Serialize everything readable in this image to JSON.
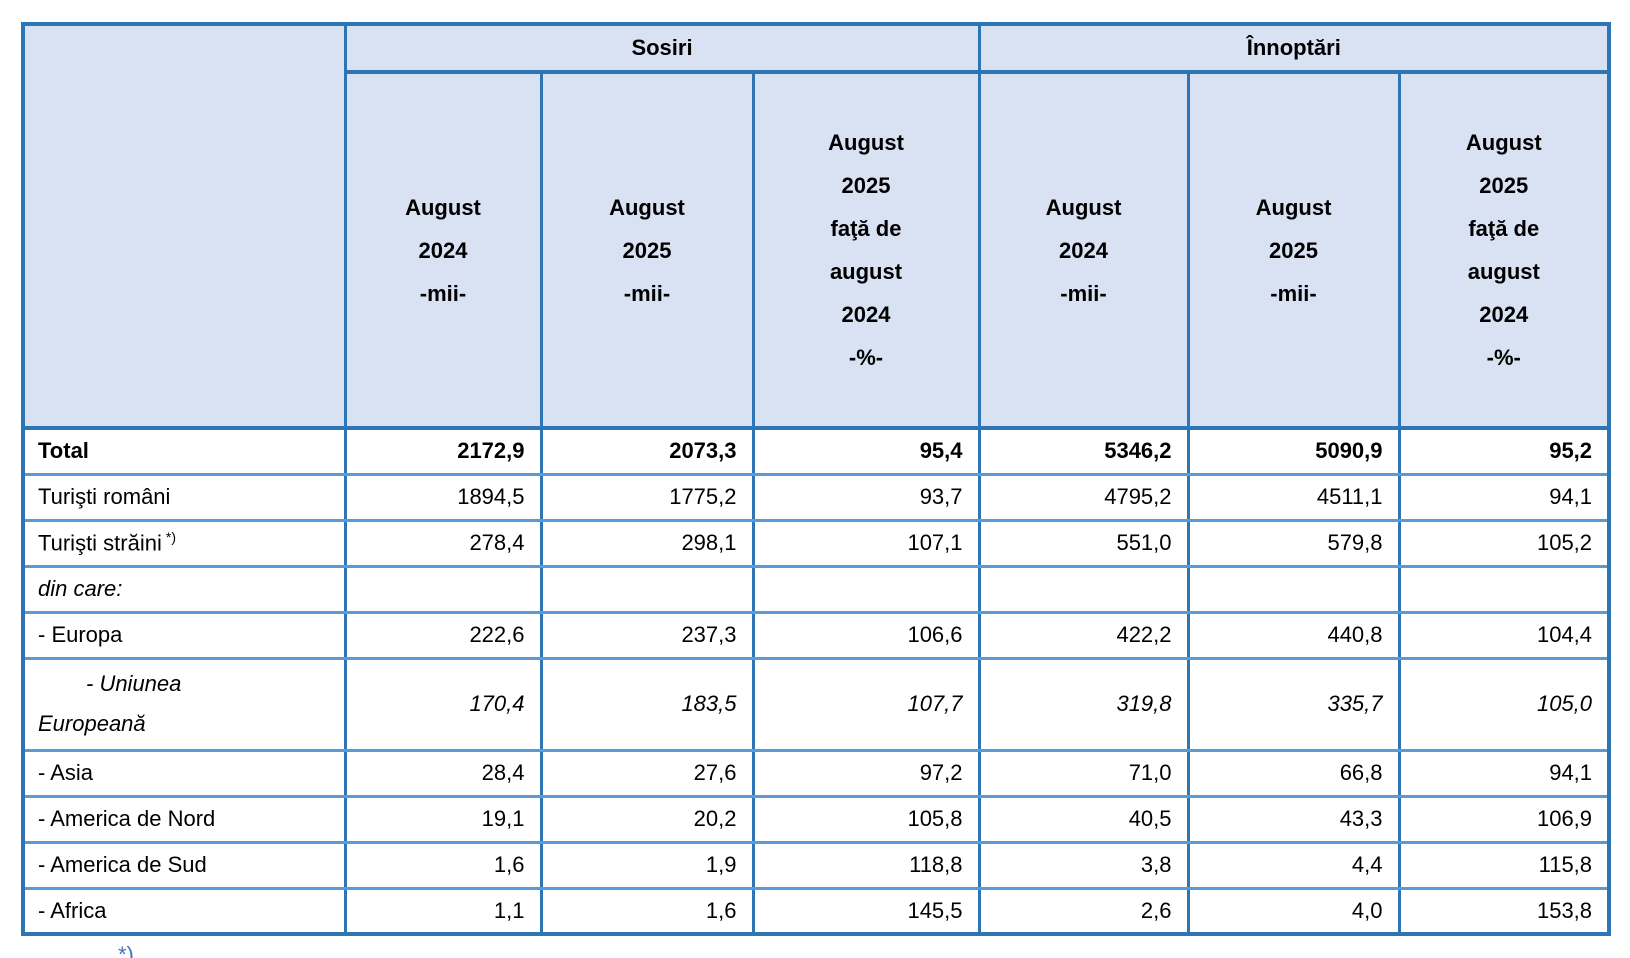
{
  "colors": {
    "border_dark": "#2E75B6",
    "border_light": "#5B9BD5",
    "header_background": "#D9E2F2",
    "text": "#000000",
    "footnote_blue": "#4472C4"
  },
  "table": {
    "group_headers": [
      {
        "label": "Sosiri"
      },
      {
        "label": "Înnoptări"
      }
    ],
    "column_headers": [
      "August\n2024\n-mii-",
      "August\n2025\n-mii-",
      "August\n2025\nfaţă de\naugust\n2024\n-%-",
      "August\n2024\n-mii-",
      "August\n2025\n-mii-",
      "August\n2025\nfaţă de\naugust\n2024\n-%-"
    ],
    "rows": [
      {
        "label": "Total",
        "bold": true,
        "values": [
          "2172,9",
          "2073,3",
          "95,4",
          "5346,2",
          "5090,9",
          "95,2"
        ]
      },
      {
        "label": "Turişti români",
        "values": [
          "1894,5",
          "1775,2",
          "93,7",
          "4795,2",
          "4511,1",
          "94,1"
        ]
      },
      {
        "label": "Turişti străini",
        "superscript": "*)",
        "values": [
          "278,4",
          "298,1",
          "107,1",
          "551,0",
          "579,8",
          "105,2"
        ]
      },
      {
        "label": "din care:",
        "italic_label": true,
        "values": [
          "",
          "",
          "",
          "",
          "",
          ""
        ]
      },
      {
        "label": "- Europa",
        "values": [
          "222,6",
          "237,3",
          "106,6",
          "422,2",
          "440,8",
          "104,4"
        ]
      },
      {
        "label": "- Uniunea Europeană",
        "italic": true,
        "label_lines": [
          "- Uniunea",
          "Europeană"
        ],
        "values": [
          "170,4",
          "183,5",
          "107,7",
          "319,8",
          "335,7",
          "105,0"
        ]
      },
      {
        "label": "- Asia",
        "values": [
          "28,4",
          "27,6",
          "97,2",
          "71,0",
          "66,8",
          "94,1"
        ]
      },
      {
        "label": "- America de Nord",
        "values": [
          "19,1",
          "20,2",
          "105,8",
          "40,5",
          "43,3",
          "106,9"
        ]
      },
      {
        "label": "- America de Sud",
        "values": [
          "1,6",
          "1,9",
          "118,8",
          "3,8",
          "4,4",
          "115,8"
        ]
      },
      {
        "label": "- Africa",
        "values": [
          "1,1",
          "1,6",
          "145,5",
          "2,6",
          "4,0",
          "153,8"
        ]
      }
    ],
    "footnote_fragment": "*)"
  }
}
